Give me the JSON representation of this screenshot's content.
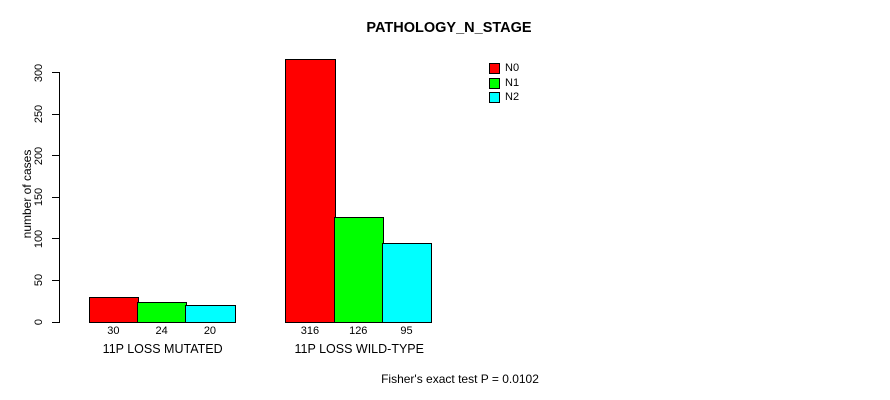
{
  "chart_data": {
    "type": "bar",
    "title": "PATHOLOGY_N_STAGE",
    "xlabel": "",
    "ylabel": "number of cases",
    "categories": [
      "11P LOSS MUTATED",
      "11P LOSS WILD-TYPE"
    ],
    "series": [
      {
        "name": "N0",
        "color": "#ff0000",
        "values": [
          30,
          316
        ]
      },
      {
        "name": "N1",
        "color": "#00ff00",
        "values": [
          24,
          126
        ]
      },
      {
        "name": "N2",
        "color": "#00ffff",
        "values": [
          20,
          95
        ]
      }
    ],
    "yticks": [
      0,
      50,
      100,
      150,
      200,
      250,
      300
    ],
    "ylim": [
      0,
      300
    ],
    "grid": false,
    "legend_position": "top-right",
    "bar_value_labels": true,
    "annotation": "Fisher's exact test P = 0.0102",
    "background_color": "#ffffff",
    "axis_color": "#000000"
  }
}
